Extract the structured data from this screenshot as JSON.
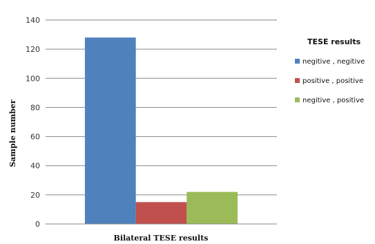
{
  "chart_data": {
    "type": "bar",
    "xlabel": "Bilateral TESE results",
    "ylabel": "Sample number",
    "ylim": [
      0,
      140
    ],
    "yticks": [
      0,
      20,
      40,
      60,
      80,
      100,
      120,
      140
    ],
    "grid": true,
    "legend": {
      "title": "TESE results",
      "position": "right"
    },
    "series": [
      {
        "name": "negitive , negitive",
        "values": [
          128
        ],
        "color": "#4f81bd"
      },
      {
        "name": "positive , positive",
        "values": [
          15
        ],
        "color": "#c0504d"
      },
      {
        "name": "negitive , positive",
        "values": [
          22
        ],
        "color": "#9bbb59"
      }
    ]
  }
}
